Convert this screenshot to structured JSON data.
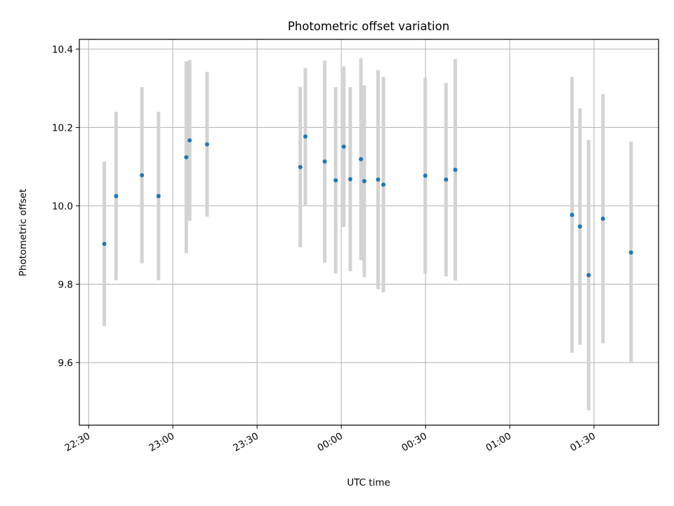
{
  "chart_data": {
    "type": "scatter",
    "title": "Photometric offset variation",
    "xlabel": "UTC time",
    "ylabel": "Photometric offset",
    "x_tick_labels": [
      "22:30",
      "23:00",
      "23:30",
      "00:00",
      "00:30",
      "01:00",
      "01:30"
    ],
    "x_tick_minutes": [
      -90,
      -60,
      -30,
      0,
      30,
      60,
      90
    ],
    "y_tick_labels": [
      "9.6",
      "9.8",
      "10.0",
      "10.2",
      "10.4"
    ],
    "y_ticks": [
      9.6,
      9.8,
      10.0,
      10.2,
      10.4
    ],
    "xlim_minutes": [
      -93.3,
      113.0
    ],
    "ylim": [
      9.44,
      10.425
    ],
    "grid": true,
    "marker_color": "#1f77b4",
    "errorbar_color": "#d3d3d3",
    "series": [
      {
        "x_minutes": [
          -84.4,
          -80.2,
          -71.0,
          -65.1,
          -55.2,
          -54.0,
          -47.8,
          -14.6,
          -12.8,
          -5.9,
          -2.0,
          0.9,
          3.2,
          7.0,
          8.2,
          13.1,
          15.0,
          29.9,
          37.3,
          40.6,
          82.2,
          85.0,
          88.1,
          93.2,
          103.2
        ],
        "y": [
          9.903,
          10.025,
          10.078,
          10.025,
          10.124,
          10.167,
          10.157,
          10.099,
          10.177,
          10.113,
          10.065,
          10.151,
          10.068,
          10.119,
          10.063,
          10.067,
          10.054,
          10.077,
          10.067,
          10.092,
          9.977,
          9.947,
          9.823,
          9.967,
          9.881
        ],
        "yerr": [
          0.21,
          0.215,
          0.225,
          0.215,
          0.245,
          0.205,
          0.185,
          0.205,
          0.175,
          0.258,
          0.238,
          0.205,
          0.235,
          0.258,
          0.245,
          0.28,
          0.275,
          0.25,
          0.247,
          0.283,
          0.352,
          0.302,
          0.345,
          0.318,
          0.283
        ]
      }
    ]
  }
}
